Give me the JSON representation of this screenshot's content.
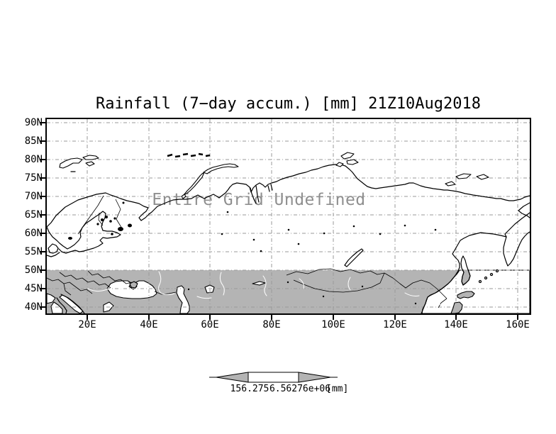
{
  "chart_data": {
    "type": "heatmap",
    "title": "Rainfall (7−day accum.) [mm] 21Z10Aug2018",
    "xlabel": "",
    "ylabel": "",
    "x_ticks": [
      "20E",
      "40E",
      "60E",
      "80E",
      "100E",
      "120E",
      "140E",
      "160E"
    ],
    "y_ticks": [
      "90N",
      "85N",
      "80N",
      "75N",
      "70N",
      "65N",
      "60N",
      "55N",
      "50N",
      "45N",
      "40N"
    ],
    "lon_range_deg_east": [
      7,
      164
    ],
    "lat_range_deg_north": [
      38.3,
      91
    ],
    "values": null,
    "status": "Entire Grid Undefined",
    "grid": true,
    "legend_position": "bottom",
    "colorbar": {
      "left_value": "156.275",
      "right_value": "6.56276e+06",
      "unit": "[mm]"
    },
    "shaded_band": "land south of 50N shaded gray"
  },
  "colors": {
    "shade": "#b4b4b4",
    "grid": "#9a9a9a",
    "undef": "#8f8f8f",
    "coast": "#000000",
    "background": "#ffffff"
  }
}
